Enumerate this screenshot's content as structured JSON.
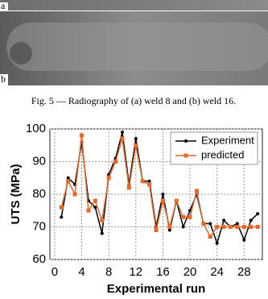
{
  "figure": {
    "labels": [
      "a",
      "b"
    ],
    "caption": "Fig. 5 — Radiography of (a) weld 8 and (b) weld 16."
  },
  "chart_data": {
    "type": "line",
    "xlabel": "Experimental run",
    "ylabel": "UTS (MPa)",
    "x": [
      1,
      2,
      3,
      4,
      5,
      6,
      7,
      8,
      9,
      10,
      11,
      12,
      13,
      14,
      15,
      16,
      17,
      18,
      19,
      20,
      21,
      22,
      23,
      24,
      25,
      26,
      27,
      28,
      29,
      30
    ],
    "series": [
      {
        "name": "Experiment",
        "color": "#000000",
        "marker": "circle",
        "values": [
          73,
          85,
          83,
          96,
          78,
          76,
          68,
          86,
          91,
          99,
          83,
          97,
          84,
          84,
          70,
          80,
          69,
          78,
          70,
          75,
          80,
          71,
          71,
          65,
          72,
          70,
          71,
          66,
          72,
          74
        ]
      },
      {
        "name": "predicted",
        "color": "#e8692c",
        "marker": "square",
        "values": [
          76,
          84,
          80,
          98,
          75,
          78,
          72,
          85,
          90,
          97,
          82,
          95,
          84,
          83,
          69,
          78,
          70,
          78,
          73,
          73,
          81,
          71,
          67,
          70,
          70,
          70,
          70,
          70,
          70,
          70
        ]
      }
    ],
    "xlim": [
      -0.7,
      30.7
    ],
    "ylim": [
      60,
      100
    ],
    "xticks": [
      0,
      4,
      8,
      12,
      16,
      20,
      24,
      28
    ],
    "yticks": [
      60,
      70,
      80,
      90,
      100
    ],
    "grid": true,
    "legend": "top-right"
  }
}
